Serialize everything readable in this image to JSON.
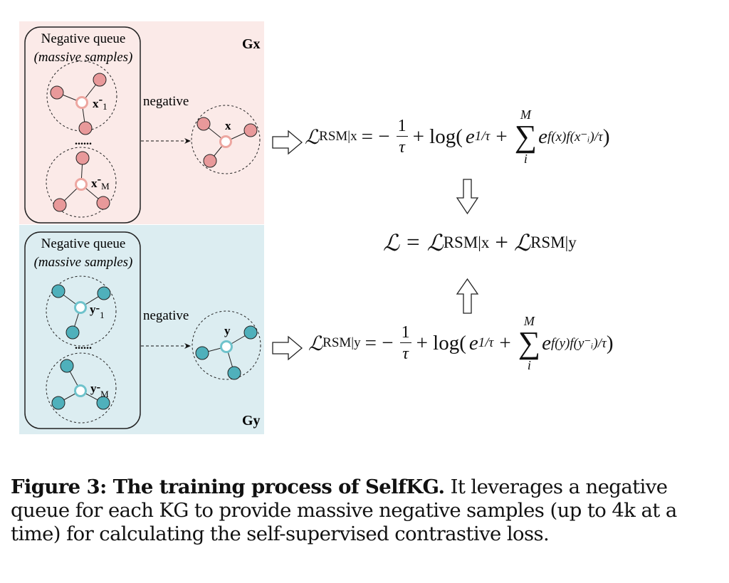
{
  "colors": {
    "gx_panel": "#fbeae8",
    "gy_panel": "#dcedf1",
    "gx_node": "#e8999a",
    "gx_center_stroke": "#eda6a0",
    "gy_node": "#4fb0bb",
    "gy_center_stroke": "#6fc3cc"
  },
  "gx_panel": {
    "graph_label": "Gx",
    "queue_title": "Negative queue",
    "queue_subtitle": "(massive samples)",
    "sample_1_label": "x",
    "sample_1_sup": "-",
    "sample_1_sub": "1",
    "ellipsis": "......",
    "sample_m_label": "x",
    "sample_m_sup": "-",
    "sample_m_sub": "M",
    "arrow_label": "negative",
    "anchor_label": "x"
  },
  "gy_panel": {
    "graph_label": "Gy",
    "queue_title": "Negative queue",
    "queue_subtitle": "(massive samples)",
    "sample_1_label": "y",
    "sample_1_sup": "-",
    "sample_1_sub": "1",
    "ellipsis": "......",
    "sample_m_label": "y",
    "sample_m_sup": "-",
    "sample_m_sub": "M",
    "arrow_label": "negative",
    "anchor_label": "y"
  },
  "equations": {
    "loss_x": {
      "lhs": "ℒ",
      "lhs_sub": "RSM|x",
      "eq": "= −",
      "num": "1",
      "den": "τ",
      "plus_log": "+ log(",
      "e": "e",
      "e_sup": "1/τ",
      "plus": "+",
      "sum_top": "M",
      "sum_bottom": "i",
      "sum": "∑",
      "e2": "e",
      "e2_sup": "f(x)f(x⁻ᵢ)/τ",
      "close": ")"
    },
    "loss_total": {
      "lhs": "ℒ",
      "eq": "=",
      "t1": "ℒ",
      "t1_sub": "RSM|x",
      "plus": "+",
      "t2": "ℒ",
      "t2_sub": "RSM|y"
    },
    "loss_y": {
      "lhs": "ℒ",
      "lhs_sub": "RSM|y",
      "eq": "= −",
      "num": "1",
      "den": "τ",
      "plus_log": "+ log(",
      "e": "e",
      "e_sup": "1/τ",
      "plus": "+",
      "sum_top": "M",
      "sum_bottom": "i",
      "sum": "∑",
      "e2": "e",
      "e2_sup": "f(y)f(y⁻ᵢ)/τ",
      "close": ")"
    }
  },
  "caption": {
    "label": "Figure 3: The training process of SelfKG.",
    "text": " It leverages a negative queue for each KG to provide massive negative samples (up to 4k at a time) for calculating the self-supervised contrastive loss."
  }
}
